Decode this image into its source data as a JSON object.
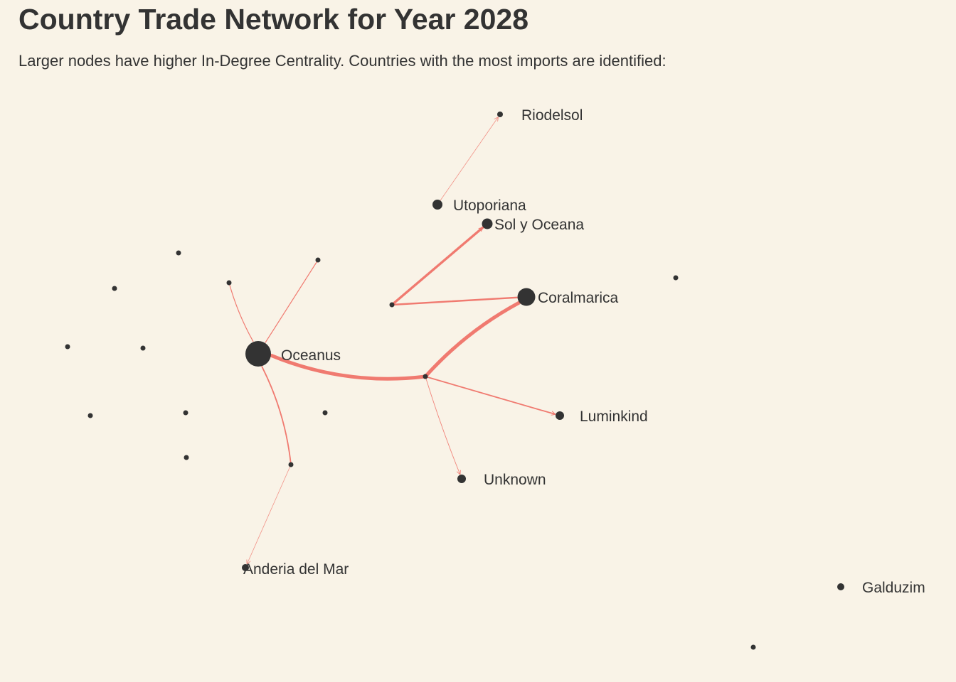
{
  "header": {
    "title": "Country Trade Network for Year 2028",
    "subtitle": "Larger nodes have higher In-Degree Centrality. Countries with the most imports are identified:"
  },
  "colors": {
    "background": "#f9f3e7",
    "edge": "#f07a70",
    "node": "#333333",
    "text": "#333333"
  },
  "network": {
    "nodes": [
      {
        "id": "riodelsol",
        "label": "Riodelsol"
      },
      {
        "id": "utoporiana",
        "label": "Utoporiana"
      },
      {
        "id": "sol-y-oceana",
        "label": "Sol y Oceana"
      },
      {
        "id": "coralmarica",
        "label": "Coralmarica"
      },
      {
        "id": "oceanus",
        "label": "Oceanus"
      },
      {
        "id": "luminkind",
        "label": "Luminkind"
      },
      {
        "id": "unknown",
        "label": "Unknown"
      },
      {
        "id": "anderia-del-mar",
        "label": "Anderia del Mar"
      },
      {
        "id": "galduzim",
        "label": "Galduzim"
      },
      {
        "id": "n1",
        "label": ""
      },
      {
        "id": "n2",
        "label": ""
      },
      {
        "id": "n3",
        "label": ""
      },
      {
        "id": "n4",
        "label": ""
      },
      {
        "id": "n5",
        "label": ""
      },
      {
        "id": "n6",
        "label": ""
      },
      {
        "id": "n7",
        "label": ""
      },
      {
        "id": "n8",
        "label": ""
      },
      {
        "id": "n9",
        "label": ""
      },
      {
        "id": "n10",
        "label": ""
      },
      {
        "id": "n11",
        "label": ""
      },
      {
        "id": "n12",
        "label": ""
      },
      {
        "id": "n13",
        "label": ""
      },
      {
        "id": "n14",
        "label": ""
      },
      {
        "id": "n15",
        "label": ""
      }
    ],
    "edges": [
      {
        "from": "utoporiana",
        "to": "riodelsol"
      },
      {
        "from": "n1",
        "to": "sol-y-oceana"
      },
      {
        "from": "n1",
        "to": "coralmarica"
      },
      {
        "from": "n2",
        "to": "coralmarica"
      },
      {
        "from": "n2",
        "to": "oceanus"
      },
      {
        "from": "n2",
        "to": "luminkind"
      },
      {
        "from": "n2",
        "to": "unknown"
      },
      {
        "from": "n3",
        "to": "oceanus"
      },
      {
        "from": "n4",
        "to": "oceanus"
      },
      {
        "from": "n5",
        "to": "oceanus"
      },
      {
        "from": "n5",
        "to": "anderia-del-mar"
      }
    ]
  }
}
